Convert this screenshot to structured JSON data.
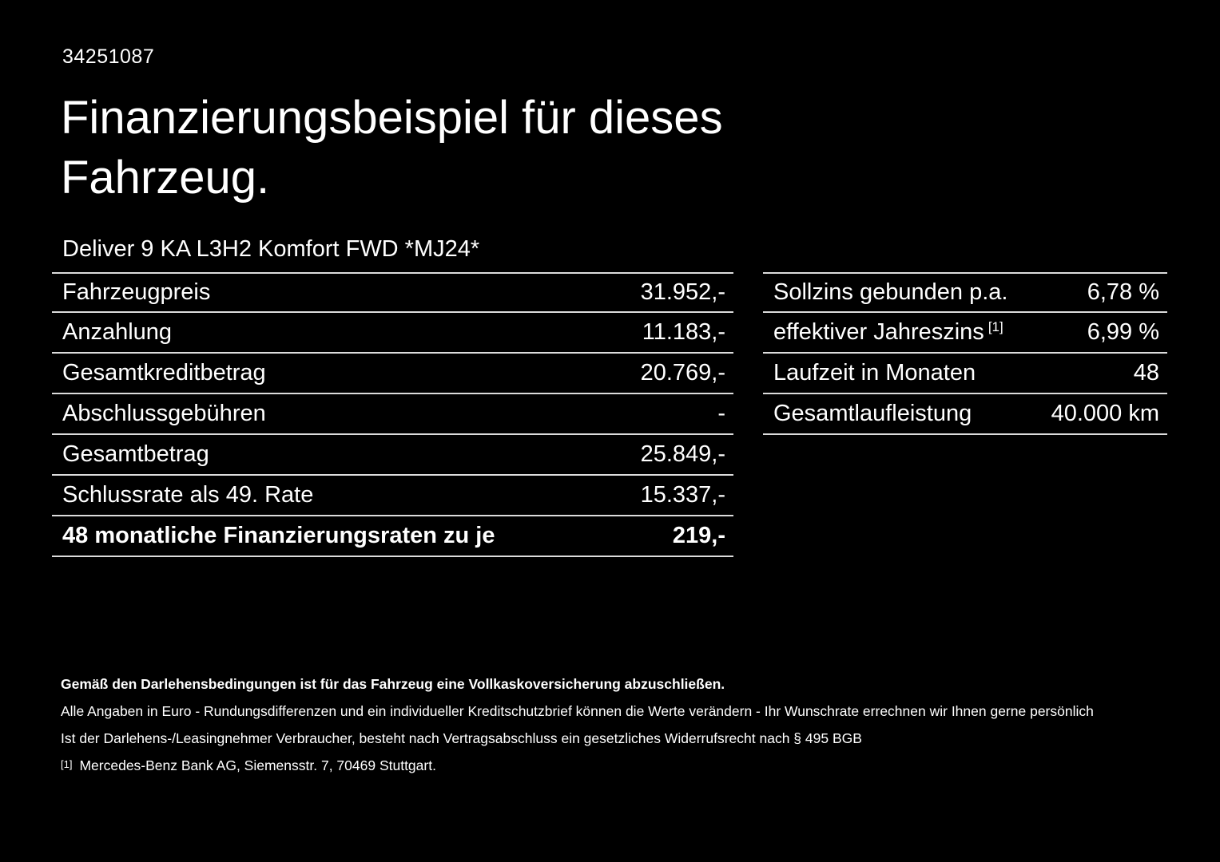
{
  "page": {
    "reference_number": "34251087",
    "title_line1": "Finanzierungsbeispiel für dieses",
    "title_line2": "Fahrzeug.",
    "vehicle_model": "Deliver 9 KA L3H2 Komfort FWD *MJ24*"
  },
  "left_table": {
    "rows": [
      {
        "label": "Fahrzeugpreis",
        "value": "31.952,-"
      },
      {
        "label": "Anzahlung",
        "value": "11.183,-"
      },
      {
        "label": "Gesamtkreditbetrag",
        "value": "20.769,-"
      },
      {
        "label": "Abschlussgebühren",
        "value": "-"
      },
      {
        "label": "Gesamtbetrag",
        "value": "25.849,-"
      },
      {
        "label": "Schlussrate als 49. Rate",
        "value": "15.337,-"
      },
      {
        "label": "48 monatliche Finanzierungsraten zu je",
        "value": "219,-"
      }
    ]
  },
  "right_table": {
    "rows": [
      {
        "label": "Sollzins gebunden p.a.",
        "sup": "",
        "value": "6,78 %"
      },
      {
        "label": "effektiver Jahreszins",
        "sup": "[1]",
        "value": "6,99 %"
      },
      {
        "label": "Laufzeit in Monaten",
        "sup": "",
        "value": "48"
      },
      {
        "label": "Gesamtlaufleistung",
        "sup": "",
        "value": "40.000 km"
      }
    ]
  },
  "footer": {
    "bold_note": "Gemäß den Darlehensbedingungen ist für das Fahrzeug eine Vollkaskoversicherung abzuschließen.",
    "note1": "Alle Angaben in Euro - Rundungsdifferenzen und ein individueller Kreditschutzbrief können die Werte verändern - Ihr Wunschrate errechnen wir Ihnen gerne persönlich",
    "note2": "Ist der Darlehens-/Leasingnehmer Verbraucher, besteht nach Vertragsabschluss ein gesetzliches Widerrufsrecht nach § 495 BGB",
    "footnote_marker": "[1]",
    "footnote_text": "Mercedes-Benz Bank AG, Siemensstr. 7, 70469 Stuttgart."
  },
  "colors": {
    "background": "#000000",
    "text": "#ffffff",
    "divider": "#dcdcdc"
  }
}
